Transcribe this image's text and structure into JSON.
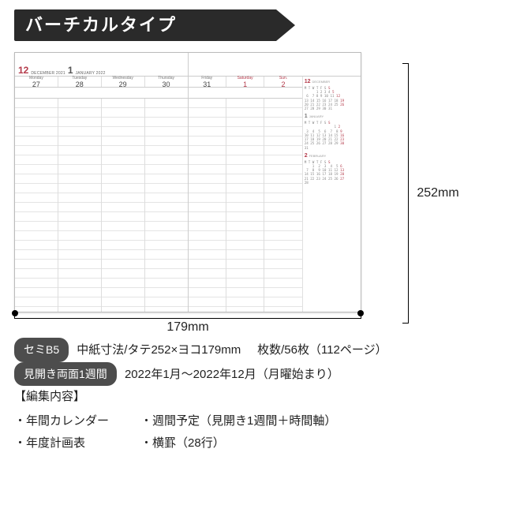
{
  "title": "バーチカルタイプ",
  "planner": {
    "left_months": [
      {
        "num": "12",
        "label": "DECEMBER 2021",
        "color": "red"
      },
      {
        "num": "1",
        "label": "JANUARY 2022",
        "color": "gray"
      }
    ],
    "left_days": [
      {
        "name": "Monday",
        "num": "27"
      },
      {
        "name": "Tuesday",
        "num": "28"
      },
      {
        "name": "Wednesday",
        "num": "29"
      },
      {
        "name": "Thursday",
        "num": "30"
      }
    ],
    "right_days": [
      {
        "name": "Friday",
        "num": "31"
      },
      {
        "name": "Saturday",
        "num": "1",
        "red": true
      },
      {
        "name": "Sun.",
        "num": "2",
        "red": true
      }
    ],
    "mini": [
      {
        "num": "12",
        "label": "DECEMBER",
        "red": true
      },
      {
        "num": "1",
        "label": "JANUARY",
        "red": false
      },
      {
        "num": "2",
        "label": "FEBRUARY",
        "red": true
      }
    ]
  },
  "dim_h": "252mm",
  "dim_w": "179mm",
  "spec": {
    "size_pill": "セミB5",
    "size_text": "中紙寸法/タテ252×ヨコ179mm",
    "pages": "枚数/56枚（112ページ）",
    "spread_pill": "見開き両面1週間",
    "spread_text": "2022年1月～2022年12月（月曜始まり）",
    "edit_head": "【編集内容】",
    "col1": [
      "年間カレンダー",
      "年度計画表"
    ],
    "col2": [
      "週間予定（見開き1週間＋時間軸）",
      "横罫（28行）"
    ]
  }
}
